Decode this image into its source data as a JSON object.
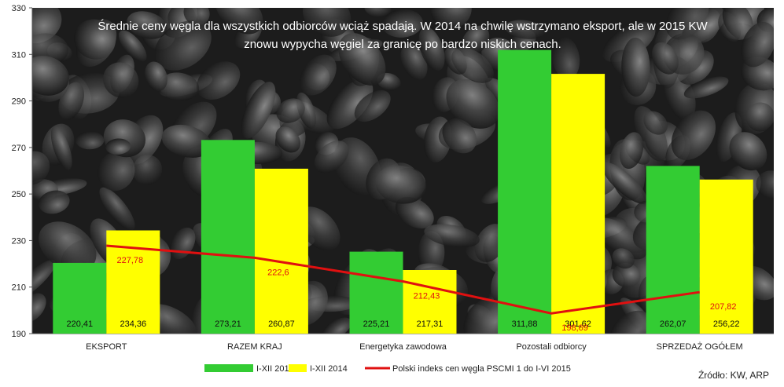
{
  "chart_data": {
    "type": "bar",
    "title_lines": [
      "Średnie ceny węgla dla wszystkich odbiorców wciąż spadają. W 2014 na chwilę wstrzymano eksport, ale w 2015 KW",
      "znowu wypycha węgiel za granicę po bardzo niskich cenach."
    ],
    "categories": [
      "EKSPORT",
      "RAZEM KRAJ",
      "Energetyka zawodowa",
      "Pozostali odbiorcy",
      "SPRZEDAŻ OGÓŁEM"
    ],
    "series": [
      {
        "name": "I-XII 2013",
        "kind": "bar",
        "color": "#33cc33",
        "values": [
          220.41,
          273.21,
          225.21,
          311.88,
          262.07
        ],
        "labels": [
          "220,41",
          "273,21",
          "225,21",
          "311,88",
          "262,07"
        ]
      },
      {
        "name": "I-XII 2014",
        "kind": "bar",
        "color": "#ffff00",
        "values": [
          234.36,
          260.87,
          217.31,
          301.62,
          256.22
        ],
        "labels": [
          "234,36",
          "260,87",
          "217,31",
          "301,62",
          "256,22"
        ]
      },
      {
        "name": "Polski indeks cen węgla PSCMI 1 do I-VI  2015",
        "kind": "line",
        "color": "#e01010",
        "values": [
          227.78,
          222.6,
          212.43,
          198.69,
          207.82
        ],
        "labels": [
          "227,78",
          "222,6",
          "212,43",
          "198,69",
          "207,82"
        ]
      }
    ],
    "yticks": [
      "190",
      "210",
      "230",
      "250",
      "270",
      "290",
      "310",
      "330"
    ],
    "ylim": [
      190,
      330
    ],
    "grid": false,
    "legend_position": "bottom",
    "source": "Źródło: KW, ARP"
  }
}
